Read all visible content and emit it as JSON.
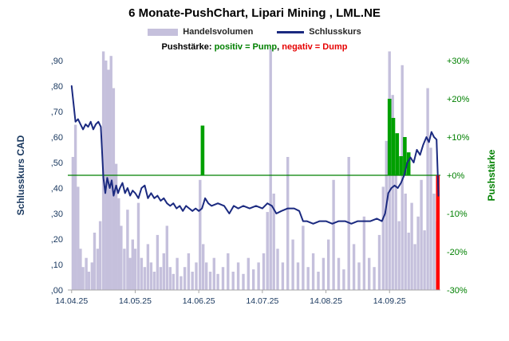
{
  "title": "6 Monate-PushChart, Lipari Mining , LML.NE",
  "legend": {
    "volume_label": "Handelsvolumen",
    "price_label": "Schlusskurs",
    "push_prefix": "Pushstärke: ",
    "push_positive": "positiv = Pump",
    "push_sep": ", ",
    "push_negative": "negativ = Dump"
  },
  "axes": {
    "left_title": "Schlusskurs CAD",
    "left_ticks": [
      ",90",
      ",80",
      ",70",
      ",60",
      ",50",
      ",40",
      ",30",
      ",20",
      ",10",
      ",00"
    ],
    "right_title": "Pushstärke",
    "right_ticks": [
      "+30%",
      "+20%",
      "+10%",
      "+0%",
      "-10%",
      "-20%",
      "-30%"
    ],
    "x_ticks": [
      "14.04.25",
      "14.05.25",
      "14.06.25",
      "14.07.25",
      "14.08.25",
      "14.09.25"
    ]
  },
  "colors": {
    "volume": "#c5c0dc",
    "price": "#1b2a80",
    "pump": "#00a000",
    "dump": "#ff0000",
    "pump_text": "#008000",
    "dump_text": "#e60000",
    "zero_line": "#008000",
    "axis_text": "#17365d",
    "push_axis_text": "#008000",
    "axis_line": "#a6a6a6"
  },
  "chart_data": {
    "type": "line",
    "title": "6 Monate-PushChart, Lipari Mining , LML.NE",
    "x_unit": "Monate seit 14.04.25",
    "x_domain": [
      -0.06,
      5.8
    ],
    "x_tick_positions": [
      0,
      1,
      2,
      3,
      4,
      5
    ],
    "price_axis": {
      "label": "Schlusskurs CAD",
      "range": [
        0.0,
        0.9
      ]
    },
    "push_axis": {
      "label": "Pushstärke",
      "range": [
        -30,
        30
      ],
      "unit": "%"
    },
    "zero_line": {
      "axis": "push",
      "value": 0
    },
    "series": [
      {
        "name": "Handelsvolumen",
        "type": "bar",
        "axis": "relative",
        "note": "relative bar heights in % of plot height, no volume scale shown",
        "x": [
          0.02,
          0.06,
          0.1,
          0.14,
          0.18,
          0.23,
          0.27,
          0.32,
          0.36,
          0.41,
          0.45,
          0.5,
          0.54,
          0.58,
          0.62,
          0.66,
          0.7,
          0.74,
          0.78,
          0.83,
          0.88,
          0.92,
          0.96,
          1.0,
          1.05,
          1.1,
          1.15,
          1.2,
          1.25,
          1.3,
          1.35,
          1.4,
          1.45,
          1.5,
          1.55,
          1.6,
          1.66,
          1.72,
          1.78,
          1.84,
          1.9,
          1.96,
          2.02,
          2.07,
          2.12,
          2.18,
          2.24,
          2.3,
          2.38,
          2.46,
          2.54,
          2.62,
          2.7,
          2.78,
          2.86,
          2.94,
          3.02,
          3.08,
          3.13,
          3.18,
          3.24,
          3.32,
          3.4,
          3.48,
          3.56,
          3.64,
          3.72,
          3.8,
          3.88,
          3.96,
          4.04,
          4.12,
          4.2,
          4.28,
          4.36,
          4.44,
          4.52,
          4.6,
          4.68,
          4.76,
          4.84,
          4.9,
          4.95,
          5.0,
          5.05,
          5.1,
          5.15,
          5.2,
          5.25,
          5.3,
          5.35,
          5.4,
          5.45,
          5.5,
          5.55,
          5.6,
          5.65,
          5.7,
          5.75
        ],
        "y": [
          58,
          72,
          45,
          18,
          10,
          14,
          8,
          12,
          25,
          18,
          30,
          104,
          100,
          96,
          102,
          88,
          55,
          40,
          28,
          18,
          35,
          14,
          22,
          18,
          38,
          14,
          10,
          20,
          12,
          8,
          24,
          10,
          16,
          28,
          10,
          7,
          14,
          6,
          10,
          16,
          8,
          12,
          48,
          20,
          12,
          8,
          14,
          7,
          10,
          16,
          8,
          12,
          7,
          14,
          9,
          12,
          16,
          34,
          105,
          42,
          18,
          12,
          58,
          22,
          12,
          28,
          10,
          16,
          8,
          14,
          22,
          48,
          14,
          9,
          58,
          20,
          12,
          32,
          14,
          10,
          24,
          45,
          65,
          104,
          85,
          52,
          30,
          98,
          42,
          25,
          38,
          20,
          32,
          48,
          26,
          88,
          62,
          42,
          30
        ]
      },
      {
        "name": "Schlusskurs",
        "type": "line",
        "axis": "price",
        "unit": "CAD",
        "x": [
          0.0,
          0.03,
          0.06,
          0.1,
          0.14,
          0.18,
          0.22,
          0.26,
          0.3,
          0.34,
          0.38,
          0.42,
          0.46,
          0.5,
          0.53,
          0.56,
          0.6,
          0.63,
          0.66,
          0.7,
          0.73,
          0.76,
          0.8,
          0.84,
          0.88,
          0.92,
          0.96,
          1.0,
          1.05,
          1.1,
          1.15,
          1.2,
          1.25,
          1.3,
          1.35,
          1.4,
          1.45,
          1.5,
          1.55,
          1.6,
          1.65,
          1.7,
          1.75,
          1.8,
          1.85,
          1.9,
          1.95,
          2.0,
          2.05,
          2.1,
          2.15,
          2.2,
          2.3,
          2.4,
          2.48,
          2.55,
          2.62,
          2.7,
          2.8,
          2.9,
          3.0,
          3.08,
          3.15,
          3.22,
          3.3,
          3.4,
          3.5,
          3.58,
          3.64,
          3.7,
          3.8,
          3.9,
          4.0,
          4.1,
          4.2,
          4.3,
          4.4,
          4.5,
          4.6,
          4.7,
          4.8,
          4.88,
          4.93,
          4.98,
          5.03,
          5.08,
          5.13,
          5.18,
          5.23,
          5.28,
          5.33,
          5.38,
          5.43,
          5.48,
          5.53,
          5.58,
          5.62,
          5.66,
          5.7,
          5.74,
          5.77
        ],
        "y": [
          0.8,
          0.73,
          0.66,
          0.67,
          0.65,
          0.63,
          0.65,
          0.64,
          0.66,
          0.63,
          0.65,
          0.66,
          0.64,
          0.44,
          0.38,
          0.44,
          0.4,
          0.43,
          0.37,
          0.41,
          0.38,
          0.4,
          0.42,
          0.38,
          0.4,
          0.37,
          0.39,
          0.38,
          0.36,
          0.4,
          0.41,
          0.36,
          0.38,
          0.36,
          0.37,
          0.35,
          0.36,
          0.34,
          0.33,
          0.34,
          0.32,
          0.33,
          0.31,
          0.33,
          0.32,
          0.31,
          0.32,
          0.31,
          0.32,
          0.36,
          0.34,
          0.33,
          0.34,
          0.33,
          0.3,
          0.33,
          0.32,
          0.33,
          0.32,
          0.33,
          0.32,
          0.34,
          0.33,
          0.3,
          0.31,
          0.32,
          0.32,
          0.31,
          0.27,
          0.27,
          0.26,
          0.27,
          0.27,
          0.26,
          0.27,
          0.27,
          0.26,
          0.27,
          0.27,
          0.27,
          0.28,
          0.27,
          0.3,
          0.38,
          0.4,
          0.41,
          0.4,
          0.42,
          0.45,
          0.5,
          0.52,
          0.5,
          0.55,
          0.53,
          0.57,
          0.6,
          0.58,
          0.62,
          0.6,
          0.59,
          0.37
        ]
      },
      {
        "name": "Pushstärke",
        "type": "bar",
        "axis": "push",
        "unit": "%",
        "x": [
          2.06,
          5.0,
          5.06,
          5.12,
          5.18,
          5.24,
          5.3,
          5.76
        ],
        "y": [
          13,
          20,
          15,
          11,
          5,
          10,
          6,
          -30
        ]
      }
    ]
  }
}
